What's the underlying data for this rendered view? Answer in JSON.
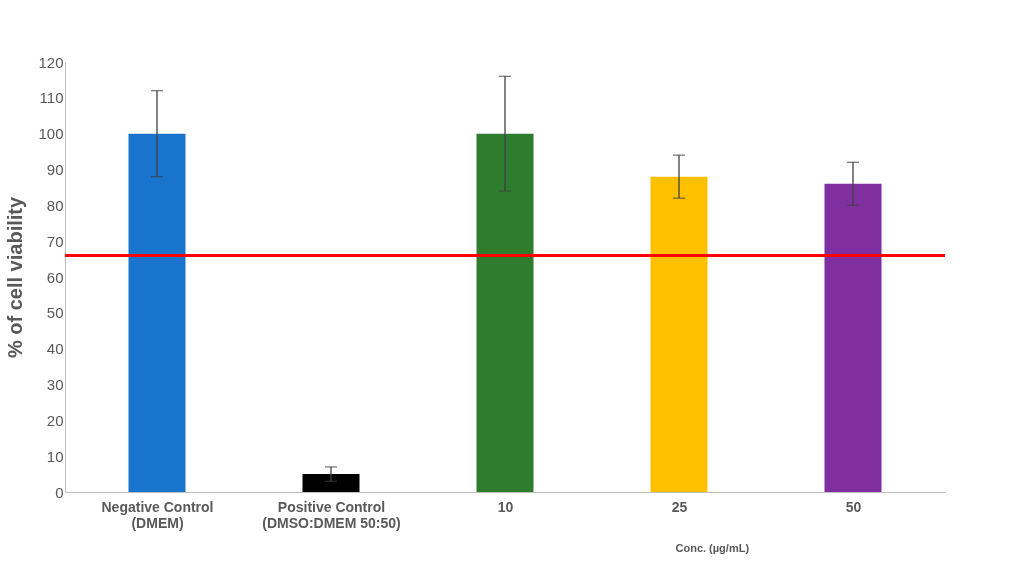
{
  "chart_data": {
    "type": "bar",
    "ylabel": "% of cell viability",
    "xlabel": "Conc. (µg/mL)",
    "categories": [
      "Negative  Control\n(DMEM)",
      "Positive  Control\n(DMSO:DMEM 50:50)",
      "10",
      "25",
      "50"
    ],
    "values": [
      100,
      5,
      100,
      88,
      86
    ],
    "colors": [
      "#1874cd",
      "#000000",
      "#2e7d2e",
      "#ffc000",
      "#7f2fa0"
    ],
    "errors": [
      12,
      2,
      16,
      6,
      6
    ],
    "ylim": [
      0,
      120
    ],
    "yticks": [
      0,
      10,
      20,
      30,
      40,
      50,
      60,
      70,
      80,
      90,
      100,
      110,
      120
    ],
    "ref_lines": [
      {
        "axis": "y",
        "value": 66,
        "color": "#ff0000"
      }
    ],
    "grid": false
  }
}
